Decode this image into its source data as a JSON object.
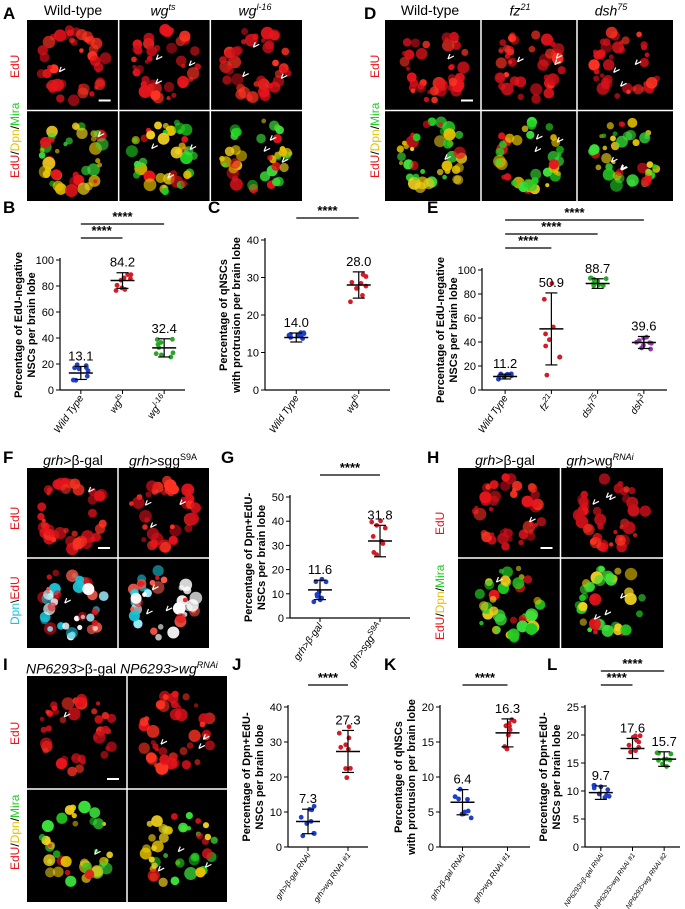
{
  "panels": {
    "A": {
      "label": "A",
      "headers": [
        "Wild-type",
        "wg",
        "ts",
        "wg",
        "l-16"
      ],
      "row1": "EdU",
      "row2": [
        "EdU",
        "/",
        "Dpn",
        "/",
        "Mira"
      ]
    },
    "B": {
      "label": "B"
    },
    "C": {
      "label": "C"
    },
    "D": {
      "label": "D",
      "headers": [
        "Wild-type",
        "fz",
        "21",
        "dsh",
        "75"
      ],
      "row1": "EdU",
      "row2": [
        "EdU",
        "/",
        "Dpn",
        "/",
        "Mira"
      ]
    },
    "E": {
      "label": "E"
    },
    "F": {
      "label": "F",
      "headers": [
        "grh",
        ">β-gal",
        "grh",
        ">sgg",
        "S9A"
      ],
      "row1": "EdU",
      "row2": [
        "Dpn",
        "\\",
        "EdU"
      ]
    },
    "G": {
      "label": "G"
    },
    "H": {
      "label": "H",
      "headers": [
        "grh",
        ">β-gal",
        "grh",
        ">wg",
        "RNAi"
      ],
      "row1": "EdU",
      "row2": [
        "EdU",
        "/",
        "Dpn",
        "/",
        "Mira"
      ]
    },
    "I": {
      "label": "I",
      "headers": [
        "NP6293",
        ">β-gal ",
        "NP6293",
        ">",
        "wg",
        "RNAi"
      ],
      "row1": "EdU",
      "row2": [
        "EdU",
        "/",
        "Dpn",
        "/",
        "Mira"
      ]
    },
    "J": {
      "label": "J"
    },
    "K": {
      "label": "K"
    },
    "L": {
      "label": "L"
    }
  },
  "colors": {
    "red": "#e8141c",
    "yellow": "#e6c200",
    "green": "#22cc22",
    "cyan": "#19c3d8",
    "blue": "#1f3fc9",
    "darkred": "#d31c2a",
    "purple": "#8a3aa8",
    "darkgreen": "#2aa52a"
  },
  "chart_data": [
    {
      "panel": "B",
      "type": "scatter",
      "ylabel": [
        "Percentage of EdU-negative",
        "NSCs per brain lobe"
      ],
      "ylim": [
        0,
        100
      ],
      "yticks": [
        0,
        20,
        40,
        60,
        80,
        100
      ],
      "categories": [
        [
          "Wild Type",
          ""
        ],
        [
          "wg",
          "ts"
        ],
        [
          "wg",
          "l-16"
        ]
      ],
      "means": [
        13.1,
        84.2,
        32.4
      ],
      "mean_labels": [
        "13.1",
        "84.2",
        "32.4"
      ],
      "sd": [
        5,
        6,
        7
      ],
      "colors": [
        "#1f3fc9",
        "#d31c2a",
        "#2aa52a"
      ],
      "significance": [
        "****",
        "****"
      ]
    },
    {
      "panel": "C",
      "type": "scatter",
      "ylabel": [
        "Percentage of qNSCs",
        "with protrusion per brain lobe"
      ],
      "ylim": [
        0,
        40
      ],
      "yticks": [
        0,
        10,
        20,
        30,
        40
      ],
      "categories": [
        [
          "Wild Type",
          ""
        ],
        [
          "wg",
          "ts"
        ]
      ],
      "means": [
        14.0,
        28.0
      ],
      "mean_labels": [
        "14.0",
        "28.0"
      ],
      "sd": [
        1.2,
        3.5
      ],
      "colors": [
        "#1f3fc9",
        "#d31c2a"
      ],
      "significance": [
        "****"
      ]
    },
    {
      "panel": "E",
      "type": "scatter",
      "ylabel": [
        "Percentage of EdU-negative",
        "NSCs per brain lobe"
      ],
      "ylim": [
        0,
        100
      ],
      "yticks": [
        0,
        20,
        40,
        60,
        80,
        100
      ],
      "categories": [
        [
          "Wild Type",
          ""
        ],
        [
          "fz",
          "21"
        ],
        [
          "dsh",
          "75"
        ],
        [
          "dsh",
          "3"
        ]
      ],
      "means": [
        11.2,
        50.9,
        88.7,
        39.6
      ],
      "mean_labels": [
        "11.2",
        "50.9",
        "88.7",
        "39.6"
      ],
      "sd": [
        2,
        30,
        4,
        5
      ],
      "colors": [
        "#1f3fc9",
        "#d31c2a",
        "#2aa52a",
        "#8a3aa8"
      ],
      "significance": [
        "****",
        "****",
        "****"
      ]
    },
    {
      "panel": "G",
      "type": "scatter",
      "ylabel": [
        "Percentage of Dpn+EdU-",
        "NSCs per brain lobe"
      ],
      "ylim": [
        0,
        50
      ],
      "yticks": [
        0,
        10,
        20,
        30,
        40,
        50
      ],
      "categories": [
        [
          "grh>β-gal",
          ""
        ],
        [
          "grh>sgg",
          "S9A"
        ]
      ],
      "means": [
        11.6,
        31.8
      ],
      "mean_labels": [
        "11.6",
        "31.8"
      ],
      "sd": [
        4,
        6.5
      ],
      "colors": [
        "#1f3fc9",
        "#d31c2a"
      ],
      "significance": [
        "****"
      ]
    },
    {
      "panel": "J",
      "type": "scatter",
      "ylabel": [
        "Percentage of Dpn+EdU-",
        "NSCs per brain lobe"
      ],
      "ylim": [
        0,
        40
      ],
      "yticks": [
        0,
        10,
        20,
        30,
        40
      ],
      "categories": [
        [
          "grh>β-gal RNAi",
          ""
        ],
        [
          "grh>wg RNAi #1",
          ""
        ]
      ],
      "means": [
        7.3,
        27.3
      ],
      "mean_labels": [
        "7.3",
        "27.3"
      ],
      "sd": [
        3.5,
        6
      ],
      "colors": [
        "#1f3fc9",
        "#d31c2a"
      ],
      "significance": [
        "****"
      ]
    },
    {
      "panel": "K",
      "type": "scatter",
      "ylabel": [
        "Percentage of qNSCs",
        "with protrusion per brain lobe"
      ],
      "ylim": [
        0,
        20
      ],
      "yticks": [
        0,
        5,
        10,
        15,
        20
      ],
      "categories": [
        [
          "grh>β-gal RNAi",
          ""
        ],
        [
          "grh>wg RNAi #1",
          ""
        ]
      ],
      "means": [
        6.4,
        16.3
      ],
      "mean_labels": [
        "6.4",
        "16.3"
      ],
      "sd": [
        1.8,
        2
      ],
      "colors": [
        "#1f3fc9",
        "#d31c2a"
      ],
      "significance": [
        "****"
      ]
    },
    {
      "panel": "L",
      "type": "scatter",
      "ylabel": [
        "Percentage of Dpn+EdU-",
        "NSCs per brain lobe"
      ],
      "ylim": [
        0,
        25
      ],
      "yticks": [
        0,
        5,
        10,
        15,
        20,
        25
      ],
      "categories": [
        [
          "NP6293>β-gal RNAi",
          ""
        ],
        [
          "NP6293>wg RNAi #1",
          ""
        ],
        [
          "NP6293>wg RNAi #2",
          ""
        ]
      ],
      "means": [
        9.7,
        17.6,
        15.7
      ],
      "mean_labels": [
        "9.7",
        "17.6",
        "15.7"
      ],
      "sd": [
        1.2,
        1.8,
        1.3
      ],
      "colors": [
        "#1f3fc9",
        "#d31c2a",
        "#2aa52a"
      ],
      "significance": [
        "****",
        "****"
      ]
    }
  ]
}
